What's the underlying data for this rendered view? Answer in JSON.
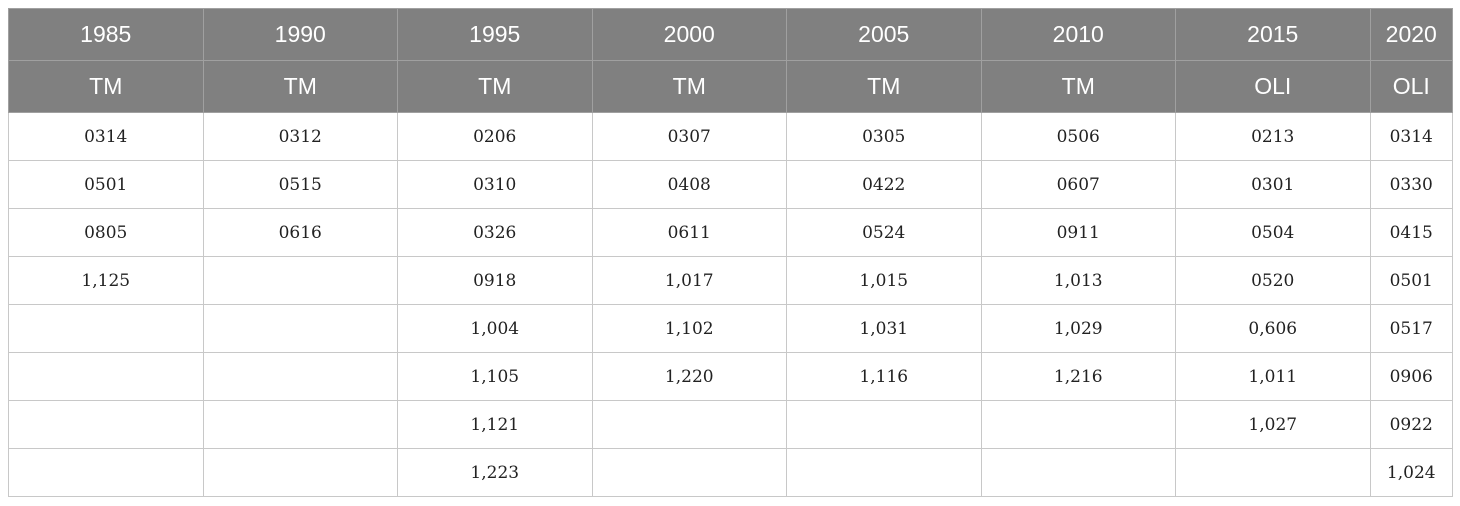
{
  "table": {
    "years": [
      "1985",
      "1990",
      "1995",
      "2000",
      "2005",
      "2010",
      "2015",
      "2020"
    ],
    "sensors": [
      "TM",
      "TM",
      "TM",
      "TM",
      "TM",
      "TM",
      "OLI",
      "OLI"
    ],
    "rows": [
      [
        "0314",
        "0312",
        "0206",
        "0307",
        "0305",
        "0506",
        "0213",
        "0314"
      ],
      [
        "0501",
        "0515",
        "0310",
        "0408",
        "0422",
        "0607",
        "0301",
        "0330"
      ],
      [
        "0805",
        "0616",
        "0326",
        "0611",
        "0524",
        "0911",
        "0504",
        "0415"
      ],
      [
        "1,125",
        "",
        "0918",
        "1,017",
        "1,015",
        "1,013",
        "0520",
        "0501"
      ],
      [
        "",
        "",
        "1,004",
        "1,102",
        "1,031",
        "1,029",
        "0,606",
        "0517"
      ],
      [
        "",
        "",
        "1,105",
        "1,220",
        "1,116",
        "1,216",
        "1,011",
        "0906"
      ],
      [
        "",
        "",
        "1,121",
        "",
        "",
        "",
        "1,027",
        "0922"
      ],
      [
        "",
        "",
        "1,223",
        "",
        "",
        "",
        "",
        "1,024"
      ]
    ]
  }
}
